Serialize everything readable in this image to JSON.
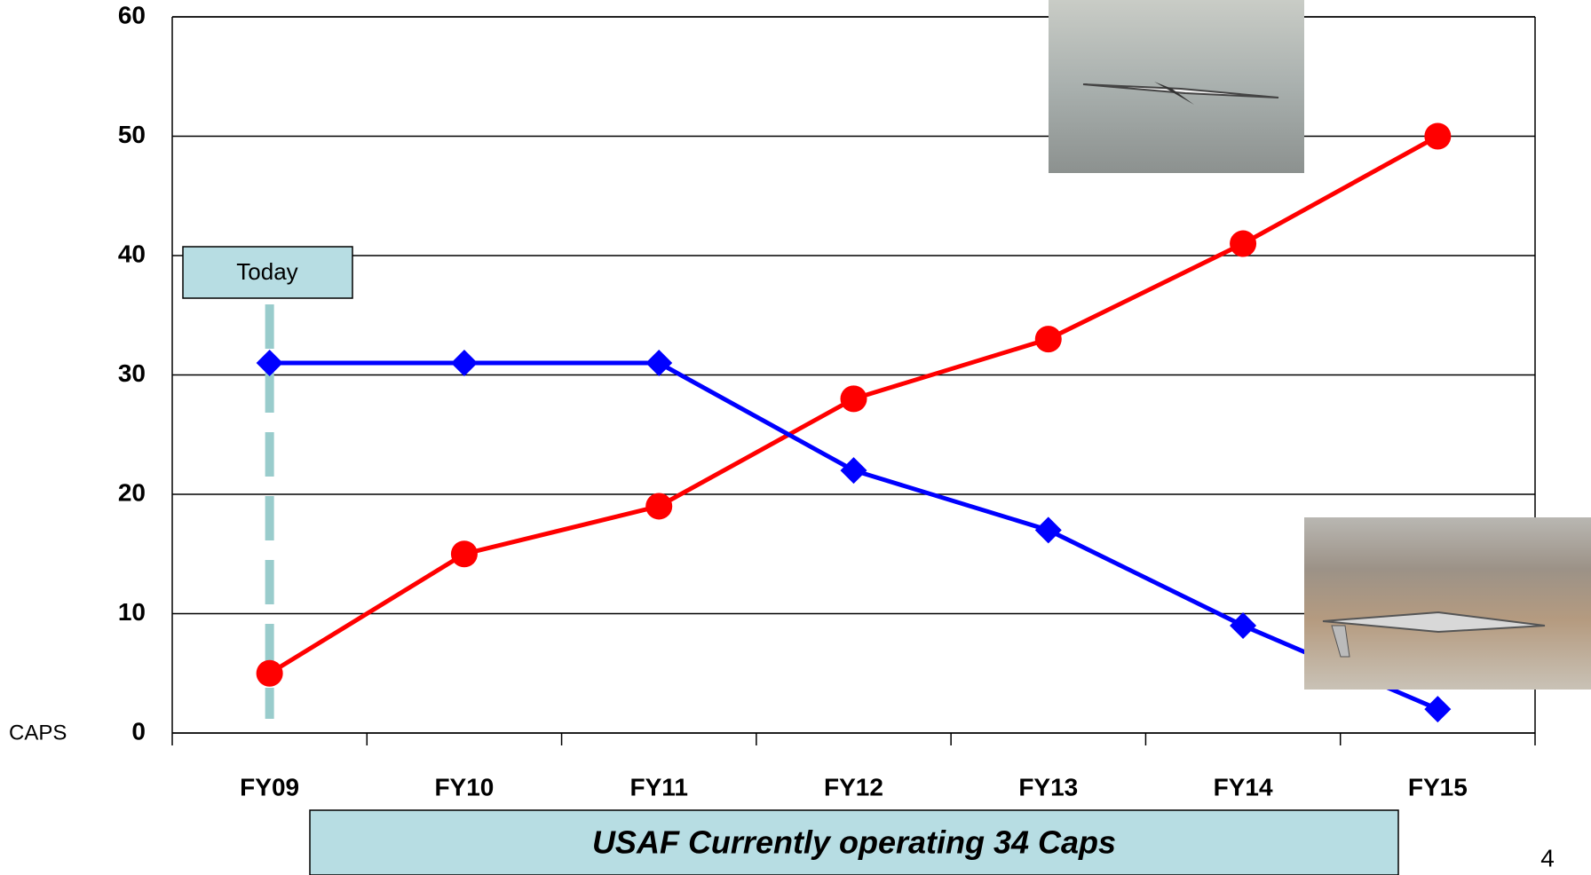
{
  "chart_data": {
    "type": "line",
    "categories": [
      "FY09",
      "FY10",
      "FY11",
      "FY12",
      "FY13",
      "FY14",
      "FY15"
    ],
    "series": [
      {
        "color": "#ff0000",
        "marker": "circle",
        "values": [
          5,
          15,
          19,
          28,
          33,
          41,
          50
        ]
      },
      {
        "color": "#0000ff",
        "marker": "diamond",
        "values": [
          31,
          31,
          31,
          22,
          17,
          9,
          2
        ]
      }
    ],
    "ylim": [
      0,
      60
    ],
    "yticks": [
      0,
      10,
      20,
      30,
      40,
      50,
      60
    ],
    "grid": true,
    "y_label": "CAPS",
    "today_label": "Today",
    "footer": "USAF Currently operating 34 Caps",
    "page_number": "4"
  }
}
